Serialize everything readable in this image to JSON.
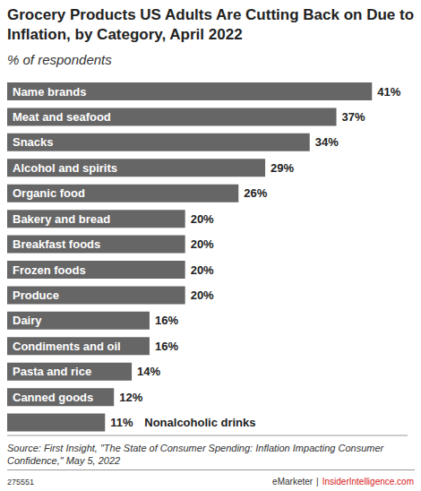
{
  "chart_data": {
    "type": "bar",
    "orientation": "horizontal",
    "title": "Grocery Products US Adults Are Cutting Back on Due to Inflation, by Category, April 2022",
    "subtitle": "% of respondents",
    "categories": [
      "Name brands",
      "Meat and seafood",
      "Snacks",
      "Alcohol and spirits",
      "Organic food",
      "Bakery and bread",
      "Breakfast foods",
      "Frozen foods",
      "Produce",
      "Dairy",
      "Condiments and oil",
      "Pasta and rice",
      "Canned goods",
      "Nonalcoholic drinks"
    ],
    "values": [
      41,
      37,
      34,
      29,
      26,
      20,
      20,
      20,
      20,
      16,
      16,
      14,
      12,
      11
    ],
    "value_labels": [
      "41%",
      "37%",
      "34%",
      "29%",
      "26%",
      "20%",
      "20%",
      "20%",
      "20%",
      "16%",
      "16%",
      "14%",
      "12%",
      "11%"
    ],
    "color": "#666666",
    "xlim": [
      0,
      45
    ],
    "data_labels": true,
    "tick_labels": false,
    "grid": false,
    "source": "Source: First Insight, \"The State of Consumer Spending: Inflation Impacting Consumer Confidence,\" May 5, 2022",
    "footer": {
      "id": "275551",
      "brand": "eMarketer",
      "separator": "|",
      "site": "InsiderIntelligence.com"
    }
  }
}
